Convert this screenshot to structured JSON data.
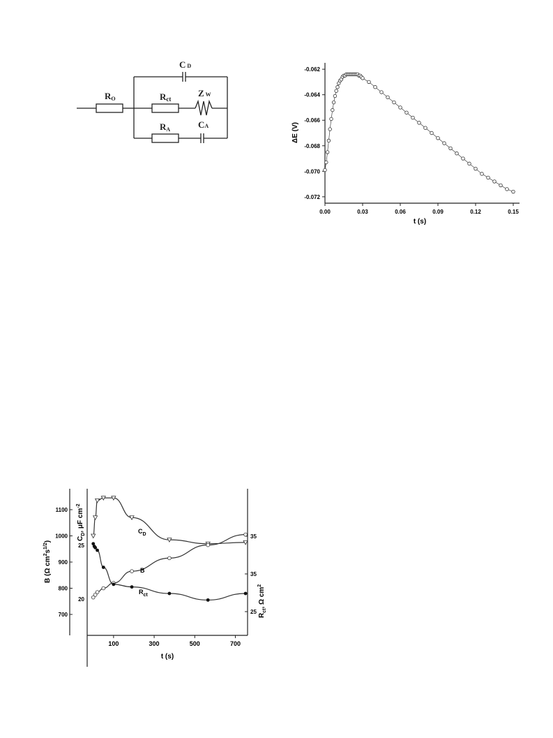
{
  "circuit": {
    "labels": {
      "r0": "R",
      "r0_sub": "O",
      "cd": "C",
      "cd_sub": "D",
      "rct": "R",
      "rct_sub": "ct",
      "zw": "Z",
      "zw_sub": "W",
      "ra": "R",
      "ra_sub": "A",
      "ca": "C",
      "ca_sub": "A"
    }
  },
  "chart_data": [
    {
      "type": "scatter",
      "xlabel": "t (s)",
      "ylabel": "ΔE (V)",
      "xlim": [
        0.0,
        0.155
      ],
      "ylim": [
        -0.0725,
        -0.0615
      ],
      "xticks": [
        "0.00",
        "0.03",
        "0.06",
        "0.09",
        "0.12",
        "0.15"
      ],
      "yticks": [
        "-0.062",
        "-0.064",
        "-0.066",
        "-0.068",
        "-0.070",
        "-0.072"
      ],
      "marker": "open-circle",
      "series": [
        {
          "x": [
            0.0,
            0.001,
            0.002,
            0.003,
            0.004,
            0.005,
            0.006,
            0.007,
            0.008,
            0.009,
            0.01,
            0.011,
            0.012,
            0.013,
            0.014,
            0.015,
            0.016,
            0.017,
            0.018,
            0.019,
            0.02,
            0.021,
            0.022,
            0.023,
            0.024,
            0.025,
            0.026,
            0.027,
            0.028,
            0.029,
            0.03,
            0.035,
            0.04,
            0.045,
            0.05,
            0.055,
            0.06,
            0.065,
            0.07,
            0.075,
            0.08,
            0.085,
            0.09,
            0.095,
            0.1,
            0.105,
            0.11,
            0.115,
            0.12,
            0.125,
            0.13,
            0.135,
            0.14,
            0.145,
            0.15
          ],
          "y": [
            -0.0699,
            -0.0693,
            -0.0685,
            -0.0676,
            -0.0667,
            -0.0659,
            -0.0652,
            -0.0646,
            -0.0641,
            -0.0637,
            -0.0634,
            -0.0631,
            -0.0629,
            -0.0628,
            -0.0626,
            -0.0625,
            -0.0625,
            -0.0624,
            -0.0624,
            -0.0624,
            -0.0624,
            -0.0624,
            -0.0624,
            -0.0624,
            -0.0624,
            -0.0624,
            -0.0624,
            -0.0625,
            -0.0625,
            -0.0626,
            -0.0627,
            -0.063,
            -0.0634,
            -0.0638,
            -0.0642,
            -0.0646,
            -0.065,
            -0.0654,
            -0.0658,
            -0.0662,
            -0.0666,
            -0.067,
            -0.0674,
            -0.0678,
            -0.0682,
            -0.0686,
            -0.069,
            -0.0694,
            -0.0698,
            -0.0702,
            -0.0705,
            -0.0708,
            -0.0711,
            -0.0714,
            -0.0716
          ]
        }
      ]
    },
    {
      "type": "line",
      "xlabel": "t (s)",
      "xlim": [
        -30,
        760
      ],
      "xticks": [
        "100",
        "300",
        "500",
        "700"
      ],
      "left_axis": {
        "label_main": "B (Ω cm",
        "label_sup": "2",
        "label_tail": "s",
        "label_tail_sup": "1/2",
        "label_close": ")",
        "ylim": [
          620,
          1180
        ],
        "ticks": [
          "1100",
          "1000",
          "900",
          "800",
          "700"
        ]
      },
      "inner_left_axis": {
        "label_main": "C",
        "label_sub": "D",
        "label_tail": ", μF cm",
        "label_sup": "-2",
        "ticks": [
          "25",
          "20"
        ]
      },
      "right_axis": {
        "label_main": "R",
        "label_sub": "ct",
        "label_tail": ", Ω cm",
        "label_sup": "2",
        "ticks": [
          "35",
          "35",
          "25"
        ]
      },
      "series": [
        {
          "name": "C",
          "name_sub": "D",
          "marker": "open-triangle-down",
          "x": [
            0,
            10,
            20,
            50,
            100,
            190,
            375,
            565,
            750
          ],
          "y": [
            1000,
            1070,
            1135,
            1145,
            1145,
            1070,
            985,
            970,
            975
          ]
        },
        {
          "name": "B",
          "marker": "open-circle",
          "x": [
            0,
            10,
            20,
            50,
            100,
            190,
            375,
            565,
            750
          ],
          "y": [
            765,
            775,
            785,
            800,
            820,
            865,
            915,
            965,
            1005
          ]
        },
        {
          "name": "R",
          "name_sub": "ct",
          "marker": "filled-circle",
          "x": [
            0,
            5,
            10,
            20,
            50,
            100,
            190,
            375,
            565,
            750
          ],
          "y": [
            970,
            960,
            955,
            945,
            880,
            815,
            805,
            780,
            755,
            780
          ]
        }
      ]
    }
  ]
}
